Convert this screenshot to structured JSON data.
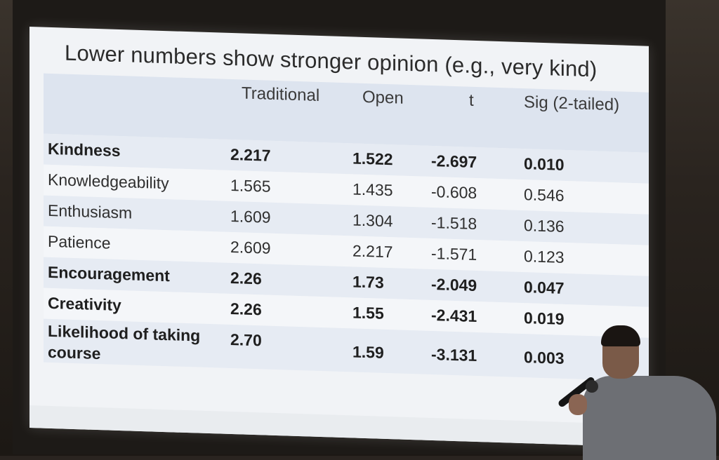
{
  "slide": {
    "title": "Lower numbers show stronger opinion (e.g., very kind)",
    "headers": [
      "",
      "Traditional",
      "Open",
      "t",
      "Sig (2-tailed)"
    ],
    "rows": [
      {
        "label": "Kindness",
        "traditional": "2.217",
        "open": "1.522",
        "t": "-2.697",
        "sig": "0.010",
        "bold": true
      },
      {
        "label": "Knowledgeability",
        "traditional": "1.565",
        "open": "1.435",
        "t": "-0.608",
        "sig": "0.546",
        "bold": false
      },
      {
        "label": "Enthusiasm",
        "traditional": "1.609",
        "open": "1.304",
        "t": "-1.518",
        "sig": "0.136",
        "bold": false
      },
      {
        "label": "Patience",
        "traditional": "2.609",
        "open": "2.217",
        "t": "-1.571",
        "sig": "0.123",
        "bold": false
      },
      {
        "label": "Encouragement",
        "traditional": "2.26",
        "open": "1.73",
        "t": "-2.049",
        "sig": "0.047",
        "bold": true
      },
      {
        "label": "Creativity",
        "traditional": "2.26",
        "open": "1.55",
        "t": "-2.431",
        "sig": "0.019",
        "bold": true
      },
      {
        "label": "Likelihood of taking course",
        "traditional": "2.70",
        "open": "1.59",
        "t": "-3.131",
        "sig": "0.003",
        "bold": true
      }
    ]
  }
}
